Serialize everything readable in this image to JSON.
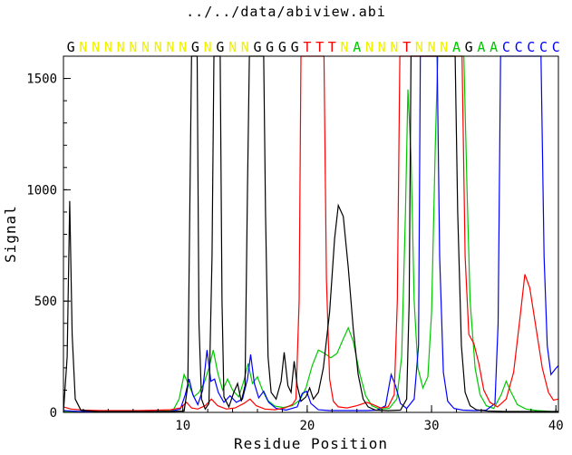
{
  "chart_data": {
    "type": "line",
    "title": "../../data/abiview.abi",
    "xlabel": "Residue Position",
    "ylabel": "Signal",
    "xlim": [
      0.4,
      40.2
    ],
    "ylim": [
      0,
      1600
    ],
    "xticks": [
      10,
      20,
      30,
      40
    ],
    "yticks": [
      0,
      500,
      1000,
      1500
    ],
    "x_minor_step": 2,
    "y_minor_step": 100,
    "grid": false,
    "legend": "none",
    "sequence": {
      "letters": "GNNNNNNNNNGNGNNGGGGTTTNANNNTNNNAGAACCCCC",
      "start_residue": 1,
      "colors": {
        "G": "#000000",
        "A": "#00c800",
        "T": "#ff0000",
        "C": "#0000ff",
        "N": "#f0f000"
      }
    },
    "series": [
      {
        "name": "A",
        "base": "adenine",
        "color": "#00c800",
        "points": [
          [
            0.4,
            4
          ],
          [
            2,
            4
          ],
          [
            4,
            4
          ],
          [
            6,
            4
          ],
          [
            8,
            4
          ],
          [
            9.2,
            8
          ],
          [
            9.7,
            60
          ],
          [
            10.1,
            170
          ],
          [
            10.5,
            120
          ],
          [
            10.9,
            70
          ],
          [
            11.3,
            90
          ],
          [
            11.7,
            130
          ],
          [
            12.1,
            200
          ],
          [
            12.45,
            280
          ],
          [
            12.8,
            180
          ],
          [
            13.2,
            100
          ],
          [
            13.6,
            150
          ],
          [
            14.0,
            100
          ],
          [
            14.5,
            70
          ],
          [
            14.9,
            140
          ],
          [
            15.25,
            220
          ],
          [
            15.6,
            130
          ],
          [
            16.0,
            160
          ],
          [
            16.4,
            100
          ],
          [
            16.8,
            55
          ],
          [
            17.4,
            28
          ],
          [
            18.1,
            22
          ],
          [
            18.8,
            30
          ],
          [
            19.4,
            55
          ],
          [
            19.9,
            110
          ],
          [
            20.4,
            210
          ],
          [
            20.9,
            280
          ],
          [
            21.4,
            265
          ],
          [
            21.9,
            245
          ],
          [
            22.4,
            265
          ],
          [
            22.9,
            330
          ],
          [
            23.3,
            380
          ],
          [
            23.7,
            320
          ],
          [
            24.2,
            180
          ],
          [
            24.7,
            75
          ],
          [
            25.2,
            30
          ],
          [
            25.8,
            15
          ],
          [
            26.6,
            18
          ],
          [
            27.2,
            60
          ],
          [
            27.6,
            250
          ],
          [
            27.9,
            900
          ],
          [
            28.1,
            1450
          ],
          [
            28.35,
            1150
          ],
          [
            28.6,
            500
          ],
          [
            28.9,
            200
          ],
          [
            29.3,
            110
          ],
          [
            29.7,
            160
          ],
          [
            30.0,
            450
          ],
          [
            30.3,
            1200
          ],
          [
            30.5,
            1600
          ],
          [
            32.6,
            1600
          ],
          [
            32.85,
            1000
          ],
          [
            33.1,
            500
          ],
          [
            33.5,
            200
          ],
          [
            33.9,
            80
          ],
          [
            34.4,
            30
          ],
          [
            35.0,
            18
          ],
          [
            35.6,
            80
          ],
          [
            36.0,
            140
          ],
          [
            36.4,
            90
          ],
          [
            36.9,
            35
          ],
          [
            37.6,
            15
          ],
          [
            38.5,
            8
          ],
          [
            39.5,
            5
          ],
          [
            40.2,
            4
          ]
        ]
      },
      {
        "name": "C",
        "base": "cytosine",
        "color": "#0000ff",
        "points": [
          [
            0.4,
            8
          ],
          [
            1.5,
            5
          ],
          [
            3,
            4
          ],
          [
            5,
            4
          ],
          [
            7,
            4
          ],
          [
            9,
            5
          ],
          [
            9.8,
            15
          ],
          [
            10.2,
            80
          ],
          [
            10.5,
            150
          ],
          [
            10.8,
            80
          ],
          [
            11.2,
            35
          ],
          [
            11.6,
            100
          ],
          [
            11.95,
            280
          ],
          [
            12.25,
            140
          ],
          [
            12.55,
            150
          ],
          [
            12.85,
            90
          ],
          [
            13.3,
            45
          ],
          [
            13.8,
            75
          ],
          [
            14.3,
            45
          ],
          [
            14.8,
            60
          ],
          [
            15.2,
            150
          ],
          [
            15.45,
            260
          ],
          [
            15.75,
            130
          ],
          [
            16.1,
            65
          ],
          [
            16.5,
            95
          ],
          [
            16.9,
            45
          ],
          [
            17.5,
            18
          ],
          [
            18.3,
            10
          ],
          [
            19.2,
            25
          ],
          [
            19.6,
            85
          ],
          [
            19.95,
            95
          ],
          [
            20.3,
            40
          ],
          [
            20.9,
            12
          ],
          [
            21.8,
            8
          ],
          [
            22.8,
            8
          ],
          [
            23.8,
            8
          ],
          [
            24.8,
            8
          ],
          [
            25.6,
            10
          ],
          [
            26.3,
            30
          ],
          [
            26.75,
            170
          ],
          [
            27.1,
            120
          ],
          [
            27.5,
            40
          ],
          [
            28.0,
            18
          ],
          [
            28.6,
            60
          ],
          [
            28.95,
            300
          ],
          [
            29.1,
            1600
          ],
          [
            30.45,
            1600
          ],
          [
            30.65,
            700
          ],
          [
            30.95,
            180
          ],
          [
            31.3,
            50
          ],
          [
            31.8,
            18
          ],
          [
            32.5,
            10
          ],
          [
            33.5,
            8
          ],
          [
            34.4,
            10
          ],
          [
            35.1,
            40
          ],
          [
            35.35,
            400
          ],
          [
            35.55,
            1600
          ],
          [
            38.8,
            1600
          ],
          [
            39.05,
            700
          ],
          [
            39.3,
            300
          ],
          [
            39.6,
            170
          ],
          [
            39.95,
            195
          ],
          [
            40.2,
            210
          ]
        ]
      },
      {
        "name": "T",
        "base": "thymine",
        "color": "#ff0000",
        "points": [
          [
            0.4,
            25
          ],
          [
            1.0,
            15
          ],
          [
            2,
            10
          ],
          [
            3.5,
            8
          ],
          [
            5,
            8
          ],
          [
            6.5,
            8
          ],
          [
            8,
            10
          ],
          [
            9,
            12
          ],
          [
            9.8,
            20
          ],
          [
            10.3,
            45
          ],
          [
            10.7,
            20
          ],
          [
            11.2,
            15
          ],
          [
            11.8,
            30
          ],
          [
            12.3,
            60
          ],
          [
            12.8,
            30
          ],
          [
            13.5,
            15
          ],
          [
            14.2,
            20
          ],
          [
            14.9,
            40
          ],
          [
            15.4,
            60
          ],
          [
            15.9,
            30
          ],
          [
            16.6,
            15
          ],
          [
            17.4,
            12
          ],
          [
            18.2,
            20
          ],
          [
            18.8,
            35
          ],
          [
            19.1,
            60
          ],
          [
            19.35,
            500
          ],
          [
            19.5,
            1600
          ],
          [
            21.35,
            1600
          ],
          [
            21.55,
            600
          ],
          [
            21.8,
            150
          ],
          [
            22.1,
            50
          ],
          [
            22.5,
            25
          ],
          [
            23.2,
            20
          ],
          [
            24.0,
            30
          ],
          [
            24.8,
            45
          ],
          [
            25.3,
            35
          ],
          [
            25.9,
            20
          ],
          [
            26.5,
            25
          ],
          [
            27.0,
            80
          ],
          [
            27.25,
            500
          ],
          [
            27.45,
            1600
          ],
          [
            32.45,
            1600
          ],
          [
            32.7,
            700
          ],
          [
            33.0,
            350
          ],
          [
            33.4,
            310
          ],
          [
            33.8,
            220
          ],
          [
            34.2,
            100
          ],
          [
            34.7,
            45
          ],
          [
            35.3,
            25
          ],
          [
            36.0,
            60
          ],
          [
            36.6,
            180
          ],
          [
            37.1,
            420
          ],
          [
            37.5,
            620
          ],
          [
            37.9,
            560
          ],
          [
            38.4,
            380
          ],
          [
            38.9,
            200
          ],
          [
            39.4,
            90
          ],
          [
            39.8,
            55
          ],
          [
            40.2,
            60
          ]
        ]
      },
      {
        "name": "G",
        "base": "guanine",
        "color": "#000000",
        "points": [
          [
            0.4,
            2
          ],
          [
            0.7,
            250
          ],
          [
            0.9,
            950
          ],
          [
            1.1,
            350
          ],
          [
            1.35,
            60
          ],
          [
            1.8,
            10
          ],
          [
            3,
            4
          ],
          [
            5,
            4
          ],
          [
            7,
            4
          ],
          [
            9,
            4
          ],
          [
            10.1,
            6
          ],
          [
            10.4,
            120
          ],
          [
            10.6,
            1100
          ],
          [
            10.7,
            1600
          ],
          [
            11.15,
            1600
          ],
          [
            11.3,
            400
          ],
          [
            11.5,
            60
          ],
          [
            11.8,
            15
          ],
          [
            12.1,
            40
          ],
          [
            12.35,
            700
          ],
          [
            12.5,
            1600
          ],
          [
            13.0,
            1600
          ],
          [
            13.15,
            500
          ],
          [
            13.3,
            70
          ],
          [
            13.7,
            25
          ],
          [
            14.1,
            90
          ],
          [
            14.4,
            130
          ],
          [
            14.7,
            50
          ],
          [
            15.0,
            120
          ],
          [
            15.2,
            1000
          ],
          [
            15.35,
            1600
          ],
          [
            16.5,
            1600
          ],
          [
            16.65,
            900
          ],
          [
            16.85,
            250
          ],
          [
            17.1,
            90
          ],
          [
            17.5,
            60
          ],
          [
            17.9,
            140
          ],
          [
            18.15,
            270
          ],
          [
            18.45,
            120
          ],
          [
            18.7,
            90
          ],
          [
            18.95,
            230
          ],
          [
            19.2,
            120
          ],
          [
            19.5,
            50
          ],
          [
            19.9,
            70
          ],
          [
            20.2,
            110
          ],
          [
            20.5,
            60
          ],
          [
            20.9,
            90
          ],
          [
            21.3,
            200
          ],
          [
            21.8,
            450
          ],
          [
            22.2,
            780
          ],
          [
            22.5,
            930
          ],
          [
            22.9,
            880
          ],
          [
            23.3,
            650
          ],
          [
            23.7,
            380
          ],
          [
            24.1,
            170
          ],
          [
            24.5,
            60
          ],
          [
            24.9,
            25
          ],
          [
            25.5,
            10
          ],
          [
            26.5,
            8
          ],
          [
            27.5,
            10
          ],
          [
            28.0,
            60
          ],
          [
            28.2,
            500
          ],
          [
            28.35,
            1600
          ],
          [
            31.9,
            1600
          ],
          [
            32.1,
            900
          ],
          [
            32.4,
            300
          ],
          [
            32.7,
            90
          ],
          [
            33.1,
            30
          ],
          [
            33.6,
            12
          ],
          [
            34.5,
            6
          ],
          [
            36,
            4
          ],
          [
            38,
            4
          ],
          [
            40.2,
            4
          ]
        ]
      }
    ]
  }
}
